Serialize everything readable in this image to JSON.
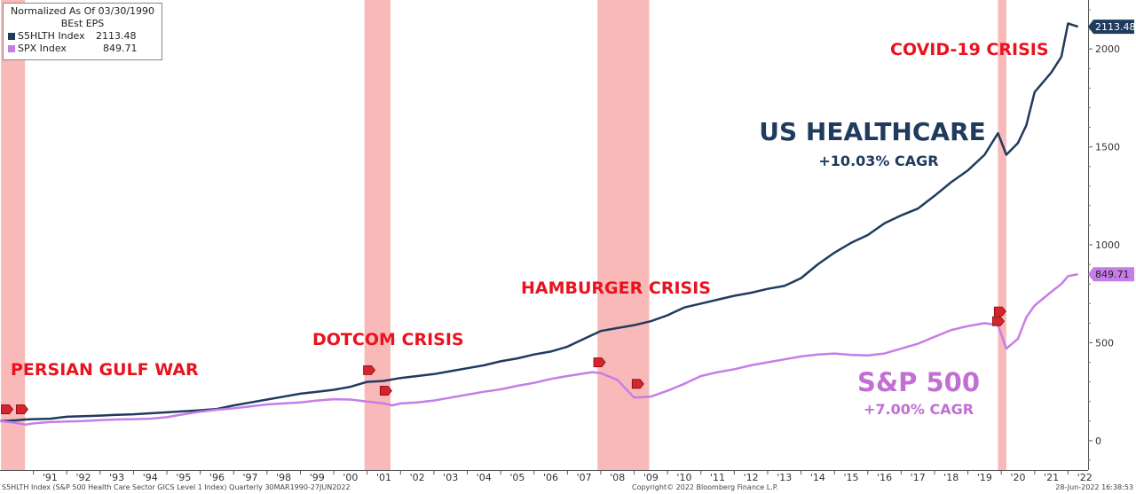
{
  "chart_data": {
    "type": "line",
    "legend": {
      "header_line1": "Normalized As Of 03/30/1990",
      "header_line2": "BEst EPS",
      "entries": [
        {
          "label": "S5HLTH Index",
          "value": "2113.48",
          "color": "#1f3b5e"
        },
        {
          "label": "SPX Index",
          "value": "849.71",
          "color": "#c77de8"
        }
      ]
    },
    "y_ticks": [
      "0",
      "500",
      "1000",
      "1500",
      "2000"
    ],
    "y_tick_values": [
      0,
      500,
      1000,
      1500,
      2000
    ],
    "ylim": [
      -150,
      2250
    ],
    "xlim": [
      1990.0,
      2022.6
    ],
    "x_tick_labels": [
      "'91",
      "'92",
      "'93",
      "'94",
      "'95",
      "'96",
      "'97",
      "'98",
      "'99",
      "'00",
      "'01",
      "'02",
      "'03",
      "'04",
      "'05",
      "'06",
      "'07",
      "'08",
      "'09",
      "'10",
      "'11",
      "'12",
      "'13",
      "'14",
      "'15",
      "'16",
      "'17",
      "'18",
      "'19",
      "'20",
      "'21",
      "'22"
    ],
    "x_tick_years": [
      1991,
      1992,
      1993,
      1994,
      1995,
      1996,
      1997,
      1998,
      1999,
      2000,
      2001,
      2002,
      2003,
      2004,
      2005,
      2006,
      2007,
      2008,
      2009,
      2010,
      2011,
      2012,
      2013,
      2014,
      2015,
      2016,
      2017,
      2018,
      2019,
      2020,
      2021,
      2022
    ],
    "crisis_bands": [
      {
        "name": "PERSIAN GULF WAR",
        "start": 1990.03,
        "end": 1990.75
      },
      {
        "name": "DOTCOM CRISIS",
        "start": 2000.92,
        "end": 2001.7
      },
      {
        "name": "HAMBURGER CRISIS",
        "start": 2007.9,
        "end": 2009.45
      },
      {
        "name": "COVID-19 CRISIS",
        "start": 2019.9,
        "end": 2020.15
      }
    ],
    "series": [
      {
        "name": "S5HLTH Index",
        "color": "#1f3b5e",
        "last_value": "2113.48",
        "points": [
          [
            1990.0,
            100
          ],
          [
            1990.25,
            102
          ],
          [
            1990.5,
            104
          ],
          [
            1990.75,
            108
          ],
          [
            1991.0,
            110
          ],
          [
            1991.5,
            112
          ],
          [
            1992.0,
            122
          ],
          [
            1992.5,
            125
          ],
          [
            1993.0,
            128
          ],
          [
            1993.5,
            132
          ],
          [
            1994.0,
            135
          ],
          [
            1994.5,
            140
          ],
          [
            1995.0,
            145
          ],
          [
            1995.5,
            150
          ],
          [
            1996.0,
            155
          ],
          [
            1996.5,
            162
          ],
          [
            1997.0,
            180
          ],
          [
            1997.5,
            195
          ],
          [
            1998.0,
            210
          ],
          [
            1998.5,
            225
          ],
          [
            1999.0,
            240
          ],
          [
            1999.5,
            250
          ],
          [
            2000.0,
            260
          ],
          [
            2000.5,
            275
          ],
          [
            2001.0,
            300
          ],
          [
            2001.5,
            305
          ],
          [
            2002.0,
            320
          ],
          [
            2002.5,
            330
          ],
          [
            2003.0,
            340
          ],
          [
            2003.5,
            355
          ],
          [
            2004.0,
            370
          ],
          [
            2004.5,
            385
          ],
          [
            2005.0,
            405
          ],
          [
            2005.5,
            420
          ],
          [
            2006.0,
            440
          ],
          [
            2006.5,
            455
          ],
          [
            2007.0,
            480
          ],
          [
            2007.5,
            520
          ],
          [
            2008.0,
            560
          ],
          [
            2008.5,
            575
          ],
          [
            2009.0,
            590
          ],
          [
            2009.5,
            610
          ],
          [
            2010.0,
            640
          ],
          [
            2010.5,
            680
          ],
          [
            2011.0,
            700
          ],
          [
            2011.5,
            720
          ],
          [
            2012.0,
            740
          ],
          [
            2012.5,
            755
          ],
          [
            2013.0,
            775
          ],
          [
            2013.5,
            790
          ],
          [
            2014.0,
            830
          ],
          [
            2014.5,
            900
          ],
          [
            2015.0,
            960
          ],
          [
            2015.5,
            1010
          ],
          [
            2016.0,
            1050
          ],
          [
            2016.5,
            1110
          ],
          [
            2017.0,
            1150
          ],
          [
            2017.5,
            1185
          ],
          [
            2018.0,
            1250
          ],
          [
            2018.5,
            1320
          ],
          [
            2019.0,
            1380
          ],
          [
            2019.5,
            1460
          ],
          [
            2019.9,
            1570
          ],
          [
            2020.15,
            1460
          ],
          [
            2020.5,
            1520
          ],
          [
            2020.75,
            1610
          ],
          [
            2021.0,
            1780
          ],
          [
            2021.5,
            1880
          ],
          [
            2021.8,
            1960
          ],
          [
            2022.0,
            2130
          ],
          [
            2022.3,
            2113.48
          ]
        ]
      },
      {
        "name": "SPX Index",
        "color": "#c77de8",
        "last_value": "849.71",
        "points": [
          [
            1990.0,
            100
          ],
          [
            1990.25,
            95
          ],
          [
            1990.5,
            90
          ],
          [
            1990.75,
            82
          ],
          [
            1991.0,
            88
          ],
          [
            1991.5,
            95
          ],
          [
            1992.0,
            98
          ],
          [
            1992.5,
            100
          ],
          [
            1993.0,
            105
          ],
          [
            1993.5,
            108
          ],
          [
            1994.0,
            110
          ],
          [
            1994.5,
            112
          ],
          [
            1995.0,
            120
          ],
          [
            1995.5,
            135
          ],
          [
            1996.0,
            148
          ],
          [
            1996.5,
            158
          ],
          [
            1997.0,
            165
          ],
          [
            1997.5,
            175
          ],
          [
            1998.0,
            185
          ],
          [
            1998.5,
            190
          ],
          [
            1999.0,
            195
          ],
          [
            1999.5,
            205
          ],
          [
            2000.0,
            212
          ],
          [
            2000.5,
            210
          ],
          [
            2001.0,
            200
          ],
          [
            2001.5,
            190
          ],
          [
            2001.75,
            180
          ],
          [
            2002.0,
            190
          ],
          [
            2002.5,
            195
          ],
          [
            2003.0,
            205
          ],
          [
            2003.5,
            220
          ],
          [
            2004.0,
            235
          ],
          [
            2004.5,
            250
          ],
          [
            2005.0,
            262
          ],
          [
            2005.5,
            280
          ],
          [
            2006.0,
            295
          ],
          [
            2006.5,
            315
          ],
          [
            2007.0,
            330
          ],
          [
            2007.75,
            350
          ],
          [
            2008.0,
            345
          ],
          [
            2008.5,
            310
          ],
          [
            2009.0,
            220
          ],
          [
            2009.5,
            225
          ],
          [
            2010.0,
            255
          ],
          [
            2010.5,
            290
          ],
          [
            2011.0,
            330
          ],
          [
            2011.5,
            350
          ],
          [
            2012.0,
            365
          ],
          [
            2012.5,
            385
          ],
          [
            2013.0,
            400
          ],
          [
            2013.5,
            415
          ],
          [
            2014.0,
            430
          ],
          [
            2014.5,
            440
          ],
          [
            2015.0,
            445
          ],
          [
            2015.5,
            438
          ],
          [
            2016.0,
            435
          ],
          [
            2016.5,
            445
          ],
          [
            2017.0,
            470
          ],
          [
            2017.5,
            495
          ],
          [
            2018.0,
            530
          ],
          [
            2018.5,
            565
          ],
          [
            2019.0,
            585
          ],
          [
            2019.5,
            600
          ],
          [
            2019.9,
            590
          ],
          [
            2020.15,
            470
          ],
          [
            2020.5,
            520
          ],
          [
            2020.75,
            630
          ],
          [
            2021.0,
            690
          ],
          [
            2021.5,
            760
          ],
          [
            2021.8,
            800
          ],
          [
            2022.0,
            840
          ],
          [
            2022.3,
            849.71
          ]
        ]
      }
    ],
    "annotations": [
      {
        "key": "persian",
        "text": "PERSIAN GULF WAR",
        "color": "#e8131e"
      },
      {
        "key": "dotcom",
        "text": "DOTCOM CRISIS",
        "color": "#e8131e"
      },
      {
        "key": "hamburger",
        "text": "HAMBURGER CRISIS",
        "color": "#e8131e"
      },
      {
        "key": "covid",
        "text": "COVID-19 CRISIS",
        "color": "#e8131e"
      },
      {
        "key": "hc_title",
        "text": "US HEALTHCARE",
        "color": "#1f3b5e"
      },
      {
        "key": "hc_cagr",
        "text": "+10.03% CAGR",
        "color": "#1f3b5e"
      },
      {
        "key": "sp_title",
        "text": "S&P 500",
        "color": "#c26fd4"
      },
      {
        "key": "sp_cagr",
        "text": "+7.00% CAGR",
        "color": "#c26fd4"
      }
    ]
  },
  "footer": {
    "left": "S5HLTH Index (S&P 500 Health Care Sector GICS Level 1 Index)  Quarterly 30MAR1990-27JUN2022",
    "center": "Copyright© 2022 Bloomberg Finance L.P.",
    "right": "28-Jun-2022 16:38:53"
  }
}
